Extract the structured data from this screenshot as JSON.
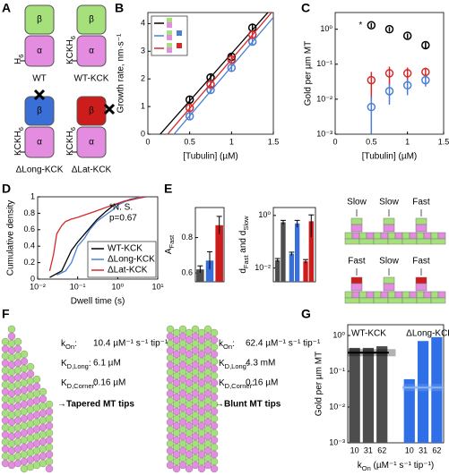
{
  "panel_labels": [
    "A",
    "B",
    "C",
    "D",
    "E",
    "F",
    "G"
  ],
  "panel_a": {
    "beta": "β",
    "alpha": "α",
    "constructs": [
      {
        "name": "WT",
        "tag": [
          "H",
          "6"
        ],
        "name_color": "#000000",
        "beta_color": "#a6e07a"
      },
      {
        "name": "WT-KCK",
        "tag": [
          "KCKH",
          "6"
        ],
        "name_color": "#000000",
        "beta_color": "#a6e07a"
      },
      {
        "name": "ΔLong-KCK",
        "tag": [
          "KCKH",
          "6"
        ],
        "name_color": "#3a6fd8",
        "beta_color": "#3a6fd8"
      },
      {
        "name": "ΔLat-KCK",
        "tag": [
          "KCKH",
          "6"
        ],
        "name_color": "#cc1c1c",
        "beta_color": "#cc1c1c"
      }
    ]
  },
  "panel_e_diagram": {
    "top": [
      "Slow",
      "Slow",
      "Fast"
    ],
    "bottom": [
      "Fast",
      "Slow",
      "Fast"
    ]
  },
  "panel_f": {
    "left": {
      "rows": [
        {
          "label": [
            "k",
            "On",
            ":"
          ],
          "value": "10.4 µM⁻¹ s⁻¹ tip⁻¹"
        },
        {
          "label": [
            "K",
            "D,Long",
            ":"
          ],
          "value": "6.1 µM"
        },
        {
          "label": [
            "K",
            "D,Corner",
            ":"
          ],
          "value": "0.16 µM"
        }
      ],
      "conclusion": "→Tapered MT tips"
    },
    "right": {
      "rows": [
        {
          "label": [
            "k",
            "On",
            ":"
          ],
          "value": "62.4 µM⁻¹ s⁻¹ tip⁻¹"
        },
        {
          "label": [
            "K",
            "D,Long",
            ":"
          ],
          "value": "4.3 mM"
        },
        {
          "label": [
            "K",
            "D,Corner",
            ":"
          ],
          "value": "0.16 µM"
        }
      ],
      "conclusion": "→Blunt MT tips"
    }
  },
  "chart_data": [
    {
      "type": "scatter",
      "xlabel": "[Tubulin] (µM)",
      "ylabel": "Growth rate, nm·s⁻¹",
      "x": [
        0.5,
        0.75,
        1,
        1.25
      ],
      "xlim": [
        0,
        1.5
      ],
      "xticks": [
        0,
        0.5,
        1,
        1.5
      ],
      "ylim": [
        0,
        4.4
      ],
      "yticks": [
        0,
        1,
        2,
        3,
        4
      ],
      "fit": true,
      "legend": "upper left",
      "series": [
        {
          "color": "#000000",
          "values": [
            1.25,
            2.05,
            2.8,
            3.85
          ],
          "errors": [
            0.12,
            0.12,
            0.12,
            0.15
          ]
        },
        {
          "color": "#4a7fd4",
          "values": [
            0.65,
            1.6,
            2.4,
            3.35
          ],
          "errors": [
            0.12,
            0.12,
            0.12,
            0.12
          ]
        },
        {
          "color": "#d42a2a",
          "values": [
            0.95,
            1.8,
            2.7,
            3.6
          ],
          "errors": [
            0.12,
            0.12,
            0.12,
            0.12
          ]
        }
      ]
    },
    {
      "type": "scatter",
      "log_y": true,
      "xlabel": "[Tubulin] (µM)",
      "ylabel": "Gold per µm MT",
      "x": [
        0.5,
        0.75,
        1,
        1.25
      ],
      "xlim": [
        0,
        1.5
      ],
      "xticks": [
        0,
        0.5,
        1,
        1.5
      ],
      "ylim": [
        0.001,
        3
      ],
      "yticks": [
        {
          "value": 0.001,
          "label": "10⁻³"
        },
        {
          "value": 0.01,
          "label": "10⁻²"
        },
        {
          "value": 0.1,
          "label": "10⁻¹"
        },
        {
          "value": 1,
          "label": "10⁰"
        }
      ],
      "annotation": "*",
      "series": [
        {
          "color": "#000000",
          "values": [
            1.3,
            1.0,
            0.65,
            0.35
          ],
          "errors": [
            0.2,
            0.15,
            0.1,
            0.07
          ]
        },
        {
          "color": "#d42a2a",
          "values": [
            0.035,
            0.055,
            0.055,
            0.06
          ],
          "errors": [
            0.025,
            0.03,
            0.025,
            0.02
          ]
        },
        {
          "color": "#4a7fd4",
          "values": [
            0.006,
            0.017,
            0.025,
            0.035
          ],
          "errors": [
            0.006,
            0.01,
            0.012,
            0.012
          ]
        }
      ]
    },
    {
      "type": "line",
      "log_x": true,
      "xlabel": "Dwell time (s)",
      "ylabel": "Cumulative density",
      "xlim": [
        0.01,
        10
      ],
      "xticks": [
        {
          "value": 0.01,
          "label": "10⁻²"
        },
        {
          "value": 0.1,
          "label": "10⁻¹"
        },
        {
          "value": 1,
          "label": "10⁰"
        },
        {
          "value": 10,
          "label": "10¹"
        }
      ],
      "ylim": [
        0,
        1
      ],
      "yticks": [
        0,
        0.2,
        0.4,
        0.6,
        0.8,
        1
      ],
      "legend": "lower right",
      "annotations": [
        "*N. S.",
        "p=0.67"
      ],
      "annotation_color": "#4a7fd4",
      "series": [
        {
          "name": "WT-KCK",
          "color": "#000000",
          "x": [
            0.02,
            0.04,
            0.05,
            0.07,
            0.1,
            0.15,
            0.2,
            0.3,
            0.5,
            0.8,
            1.2,
            2,
            3,
            5
          ],
          "values": [
            0.02,
            0.1,
            0.2,
            0.35,
            0.45,
            0.55,
            0.62,
            0.72,
            0.82,
            0.9,
            0.93,
            0.96,
            0.98,
            1
          ]
        },
        {
          "name": "ΔLong-KCK",
          "color": "#4a7fd4",
          "x": [
            0.03,
            0.05,
            0.07,
            0.1,
            0.15,
            0.2,
            0.3,
            0.5,
            0.8,
            1,
            1.5,
            2,
            4
          ],
          "values": [
            0.05,
            0.1,
            0.2,
            0.4,
            0.5,
            0.6,
            0.7,
            0.78,
            0.85,
            0.9,
            0.94,
            0.97,
            1
          ]
        },
        {
          "name": "ΔLat-KCK",
          "color": "#d42a2a",
          "x": [
            0.02,
            0.025,
            0.03,
            0.04,
            0.05,
            0.07,
            0.1,
            0.15,
            0.2,
            0.3,
            0.5,
            1,
            1.5,
            3,
            5
          ],
          "values": [
            0.1,
            0.3,
            0.55,
            0.65,
            0.7,
            0.73,
            0.75,
            0.78,
            0.8,
            0.83,
            0.87,
            0.92,
            0.95,
            0.98,
            1
          ]
        }
      ]
    },
    {
      "type": "bar",
      "ylabel": [
        "A",
        "Fast"
      ],
      "categories": [
        null,
        null,
        null
      ],
      "values": [
        0.62,
        0.67,
        0.87
      ],
      "errors": [
        0.02,
        0.05,
        0.05
      ],
      "colors": [
        "#4d4d4d",
        "#3a6fd8",
        "#cc1c1c"
      ],
      "ylim": [
        0.55,
        0.97
      ],
      "yticks": [
        0.6,
        0.8
      ]
    },
    {
      "type": "bar",
      "log_y": true,
      "ylabel": [
        "d",
        "Fast",
        " and d",
        "Slow"
      ],
      "categories": [
        null,
        null,
        null
      ],
      "series": [
        {
          "values": [
            0.02,
            0.035,
            0.018
          ],
          "errors": [
            0.003,
            0.005,
            0.003
          ]
        },
        {
          "values": [
            0.55,
            0.5,
            0.6
          ],
          "errors": [
            0.1,
            0.15,
            0.45
          ]
        }
      ],
      "colors": [
        "#4d4d4d",
        "#3a6fd8",
        "#cc1c1c"
      ],
      "ylim": [
        0.003,
        2
      ],
      "yticks": [
        {
          "value": 0.01,
          "label": "10⁻²"
        },
        {
          "value": 1,
          "label": "10⁰"
        }
      ]
    },
    {
      "type": "bar",
      "log_y": true,
      "xlabel": [
        "k",
        "On",
        " (µM⁻¹ s⁻¹ tip⁻¹)"
      ],
      "ylabel": "Gold per µm MT",
      "categories": [
        "10",
        "31",
        "62",
        "10",
        "31",
        "62"
      ],
      "values": [
        0.45,
        0.45,
        0.5,
        0.06,
        0.7,
        0.9
      ],
      "colors": [
        "#4d4d4d",
        "#2f6fe8"
      ],
      "groups": [
        "WT-KCK",
        "ΔLong-KCK"
      ],
      "group_text_colors": [
        "#000000",
        "#2f6fe8"
      ],
      "hlines": [
        0.33,
        0.035
      ],
      "hline_colors": [
        "#000000",
        "#8ab4f0"
      ],
      "ylim": [
        0.001,
        2
      ],
      "yticks": [
        {
          "value": 0.001,
          "label": "10⁻³"
        },
        {
          "value": 0.01,
          "label": "10⁻²"
        },
        {
          "value": 0.1,
          "label": "10⁻¹"
        },
        {
          "value": 1,
          "label": "10⁰"
        }
      ]
    }
  ]
}
